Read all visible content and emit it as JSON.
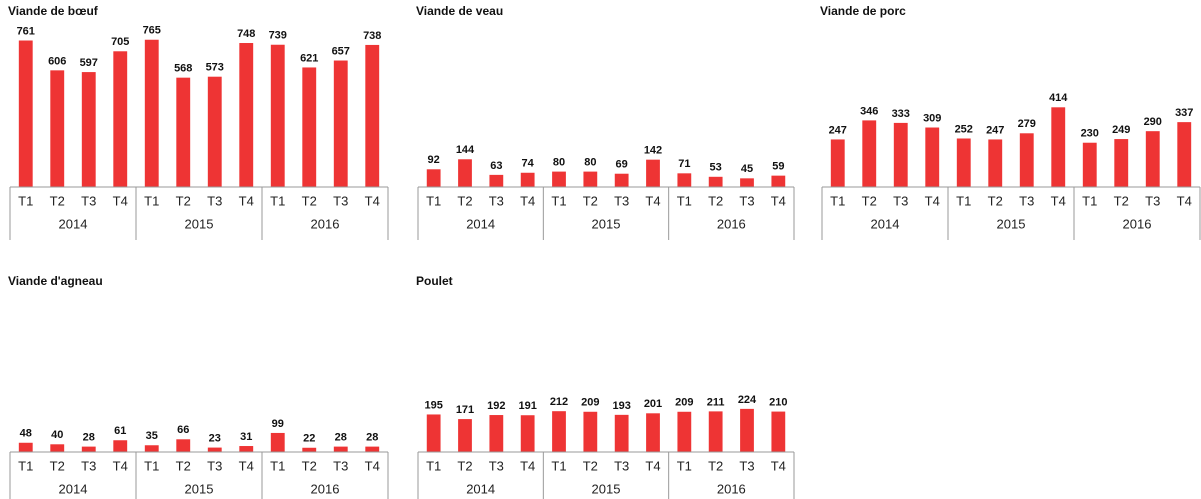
{
  "chart_data": [
    {
      "type": "bar",
      "title": "Viande de bœuf",
      "categories": [
        "T1",
        "T2",
        "T3",
        "T4",
        "T1",
        "T2",
        "T3",
        "T4",
        "T1",
        "T2",
        "T3",
        "T4"
      ],
      "groups": [
        "2014",
        "2015",
        "2016"
      ],
      "values": [
        761,
        606,
        597,
        705,
        765,
        568,
        573,
        748,
        739,
        621,
        657,
        738
      ],
      "color": "#ee3434",
      "ylim": [
        0,
        800
      ]
    },
    {
      "type": "bar",
      "title": "Viande de veau",
      "categories": [
        "T1",
        "T2",
        "T3",
        "T4",
        "T1",
        "T2",
        "T3",
        "T4",
        "T1",
        "T2",
        "T3",
        "T4"
      ],
      "groups": [
        "2014",
        "2015",
        "2016"
      ],
      "values": [
        92,
        144,
        63,
        74,
        80,
        80,
        69,
        142,
        71,
        53,
        45,
        59
      ],
      "color": "#ee3434",
      "ylim": [
        0,
        800
      ]
    },
    {
      "type": "bar",
      "title": "Viande de porc",
      "categories": [
        "T1",
        "T2",
        "T3",
        "T4",
        "T1",
        "T2",
        "T3",
        "T4",
        "T1",
        "T2",
        "T3",
        "T4"
      ],
      "groups": [
        "2014",
        "2015",
        "2016"
      ],
      "values": [
        247,
        346,
        333,
        309,
        252,
        247,
        279,
        414,
        230,
        249,
        290,
        337
      ],
      "color": "#ee3434",
      "ylim": [
        0,
        800
      ]
    },
    {
      "type": "bar",
      "title": "Viande d'agneau",
      "categories": [
        "T1",
        "T2",
        "T3",
        "T4",
        "T1",
        "T2",
        "T3",
        "T4",
        "T1",
        "T2",
        "T3",
        "T4"
      ],
      "groups": [
        "2014",
        "2015",
        "2016"
      ],
      "values": [
        48,
        40,
        28,
        61,
        35,
        66,
        23,
        31,
        99,
        22,
        28,
        28
      ],
      "color": "#ee3434",
      "ylim": [
        0,
        800
      ]
    },
    {
      "type": "bar",
      "title": "Poulet",
      "categories": [
        "T1",
        "T2",
        "T3",
        "T4",
        "T1",
        "T2",
        "T3",
        "T4",
        "T1",
        "T2",
        "T3",
        "T4"
      ],
      "groups": [
        "2014",
        "2015",
        "2016"
      ],
      "values": [
        195,
        171,
        192,
        191,
        212,
        209,
        193,
        201,
        209,
        211,
        224,
        210
      ],
      "color": "#ee3434",
      "ylim": [
        0,
        800
      ]
    }
  ]
}
